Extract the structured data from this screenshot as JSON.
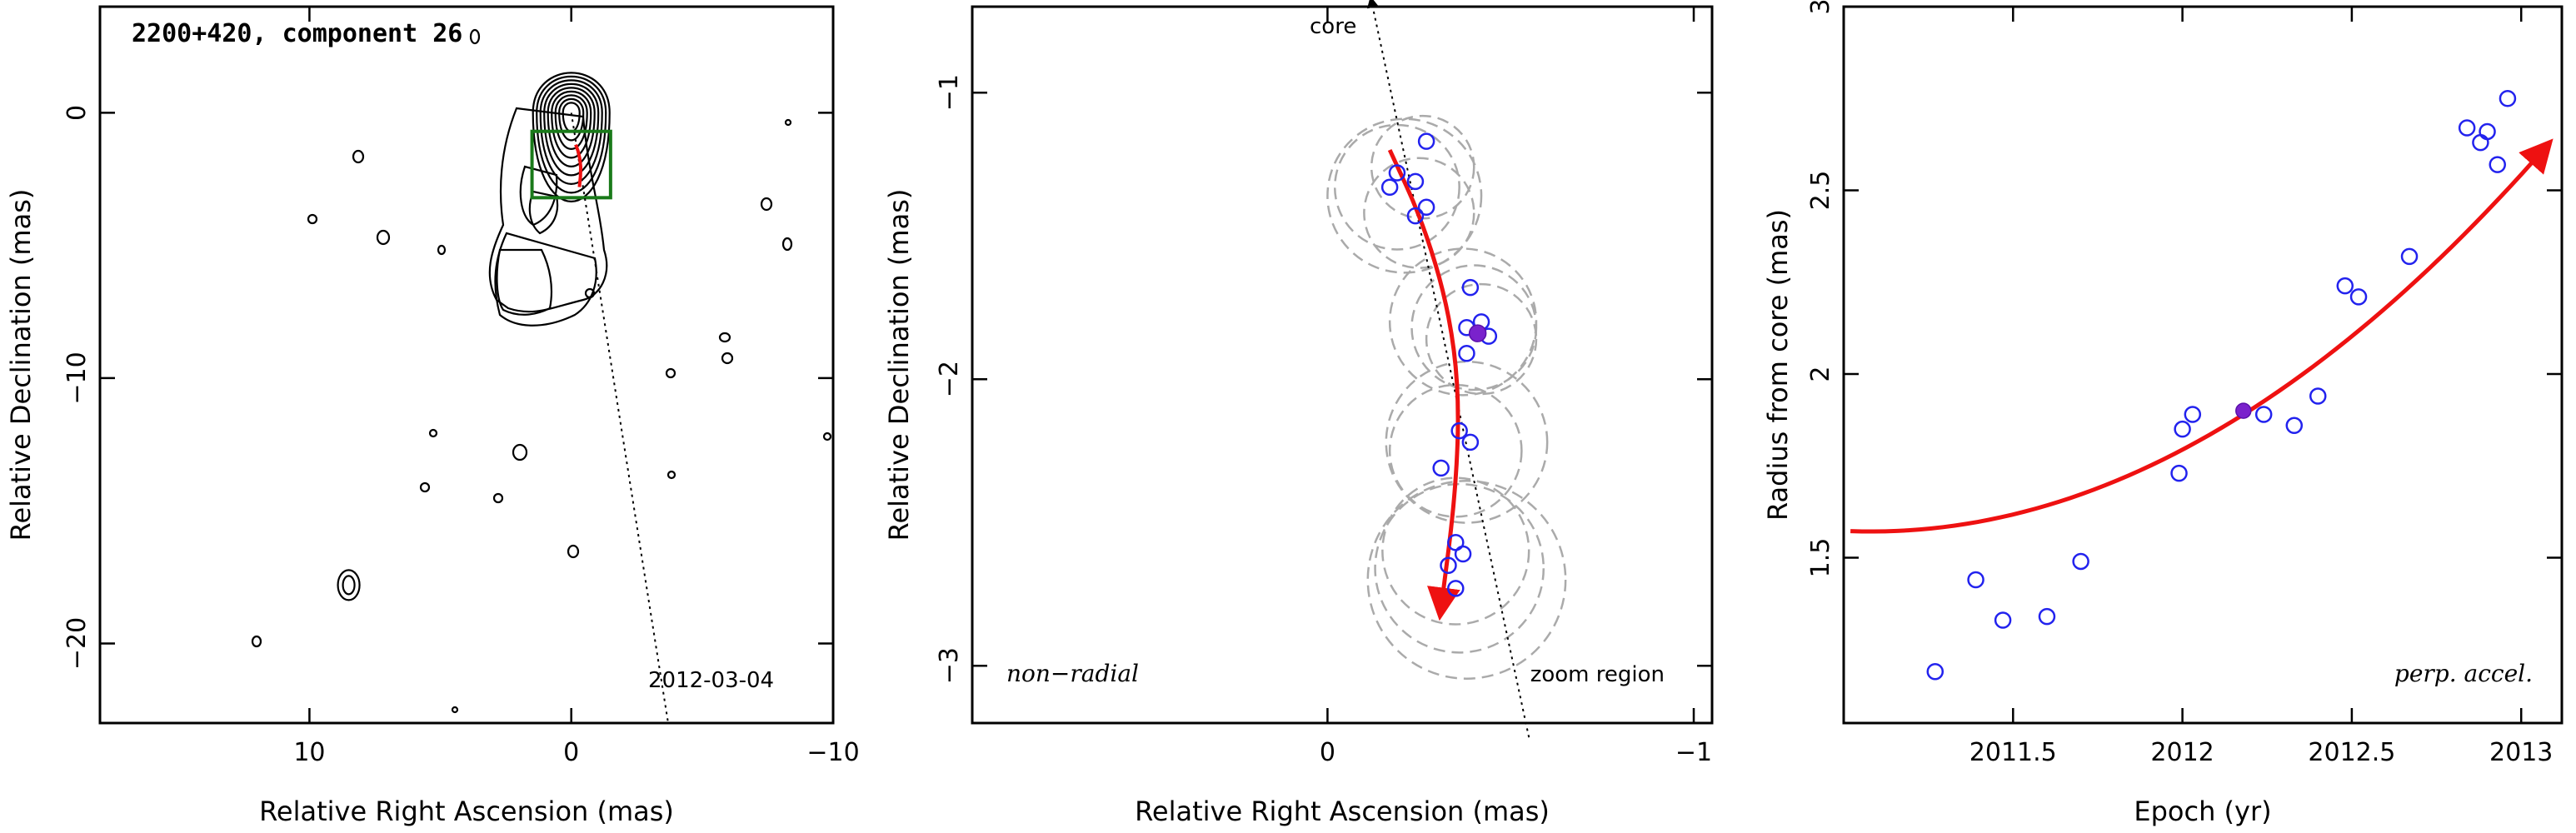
{
  "colors": {
    "track": "#ee1111",
    "points_open": "#2222ee",
    "point_filled": "#7a22cc",
    "box": "#1a7a1a",
    "circles": "#aaaaaa"
  },
  "chart_data": [
    {
      "type": "contour",
      "title": "2200+420, component 26",
      "xlabel": "Relative Right Ascension (mas)",
      "ylabel": "Relative Declination (mas)",
      "xlim": [
        18,
        -10
      ],
      "ylim": [
        -23,
        4
      ],
      "xticks": [
        10,
        0,
        -10
      ],
      "yticks": [
        0,
        -10,
        -20
      ],
      "xticklabels": [
        "10",
        "0",
        "−10"
      ],
      "yticklabels": [
        "0",
        "−10",
        "−20"
      ],
      "epoch_label": "2012-03-04",
      "zoom_box": {
        "x": [
          1.5,
          -1.5
        ],
        "y": [
          -0.7,
          -3.2
        ]
      },
      "direction_line": {
        "from": [
          0,
          0
        ],
        "to": [
          -3.7,
          -23
        ]
      }
    },
    {
      "type": "scatter",
      "xlabel": "Relative Right Ascension (mas)",
      "ylabel": "Relative Declination (mas)",
      "xlim": [
        0.97,
        -1.05
      ],
      "ylim": [
        -3.2,
        -0.7
      ],
      "xticks": [
        0,
        -1
      ],
      "yticks": [
        -1,
        -2,
        -3
      ],
      "xticklabels": [
        "0",
        "−1"
      ],
      "yticklabels": [
        "−1",
        "−2",
        "−3"
      ],
      "annotations": {
        "left": "non−radial",
        "right": "zoom region",
        "core": "core"
      },
      "points": [
        {
          "x": -0.27,
          "y": -1.17
        },
        {
          "x": -0.19,
          "y": -1.28
        },
        {
          "x": -0.24,
          "y": -1.31
        },
        {
          "x": -0.17,
          "y": -1.33
        },
        {
          "x": -0.27,
          "y": -1.4
        },
        {
          "x": -0.24,
          "y": -1.43
        },
        {
          "x": -0.39,
          "y": -1.68
        },
        {
          "x": -0.42,
          "y": -1.8
        },
        {
          "x": -0.38,
          "y": -1.82
        },
        {
          "x": -0.44,
          "y": -1.85
        },
        {
          "x": -0.38,
          "y": -1.91
        },
        {
          "x": -0.36,
          "y": -2.18
        },
        {
          "x": -0.39,
          "y": -2.22
        },
        {
          "x": -0.31,
          "y": -2.31
        },
        {
          "x": -0.35,
          "y": -2.57
        },
        {
          "x": -0.37,
          "y": -2.61
        },
        {
          "x": -0.33,
          "y": -2.65
        },
        {
          "x": -0.35,
          "y": -2.73
        }
      ],
      "highlight_point": {
        "x": -0.41,
        "y": -1.84
      },
      "circles": [
        {
          "x": -0.19,
          "y": -1.33,
          "r": 0.17
        },
        {
          "x": -0.26,
          "y": -1.26,
          "r": 0.14
        },
        {
          "x": -0.25,
          "y": -1.42,
          "r": 0.15
        },
        {
          "x": -0.21,
          "y": -1.36,
          "r": 0.21
        },
        {
          "x": -0.4,
          "y": -1.82,
          "r": 0.17
        },
        {
          "x": -0.42,
          "y": -1.86,
          "r": 0.15
        },
        {
          "x": -0.37,
          "y": -1.8,
          "r": 0.2
        },
        {
          "x": -0.35,
          "y": -2.25,
          "r": 0.18
        },
        {
          "x": -0.38,
          "y": -2.22,
          "r": 0.22
        },
        {
          "x": -0.35,
          "y": -2.6,
          "r": 0.2
        },
        {
          "x": -0.36,
          "y": -2.66,
          "r": 0.23
        },
        {
          "x": -0.38,
          "y": -2.7,
          "r": 0.27
        }
      ],
      "track": [
        {
          "x": -0.17,
          "y": -1.2
        },
        {
          "x": -0.26,
          "y": -1.45
        },
        {
          "x": -0.33,
          "y": -1.75
        },
        {
          "x": -0.36,
          "y": -2.05
        },
        {
          "x": -0.35,
          "y": -2.4
        },
        {
          "x": -0.31,
          "y": -2.8
        }
      ],
      "core_line": {
        "from": [
          -0.55,
          -3.25
        ],
        "to": [
          -0.12,
          -0.68
        ]
      }
    },
    {
      "type": "scatter",
      "xlabel": "Epoch (yr)",
      "ylabel": "Radius from core (mas)",
      "xlim": [
        2011.0,
        2013.12
      ],
      "ylim": [
        1.05,
        3.0
      ],
      "xticks": [
        2011.5,
        2012,
        2012.5,
        2013
      ],
      "yticks": [
        1.5,
        2,
        2.5,
        3
      ],
      "xticklabels": [
        "2011.5",
        "2012",
        "2012.5",
        "2013"
      ],
      "yticklabels": [
        "1.5",
        "2",
        "2.5",
        "3"
      ],
      "annotation": "perp. accel.",
      "points": [
        {
          "x": 2011.27,
          "y": 1.19
        },
        {
          "x": 2011.39,
          "y": 1.44
        },
        {
          "x": 2011.47,
          "y": 1.33
        },
        {
          "x": 2011.6,
          "y": 1.34
        },
        {
          "x": 2011.7,
          "y": 1.49
        },
        {
          "x": 2011.99,
          "y": 1.73
        },
        {
          "x": 2012.0,
          "y": 1.85
        },
        {
          "x": 2012.03,
          "y": 1.89
        },
        {
          "x": 2012.24,
          "y": 1.89
        },
        {
          "x": 2012.33,
          "y": 1.86
        },
        {
          "x": 2012.4,
          "y": 1.94
        },
        {
          "x": 2012.48,
          "y": 2.24
        },
        {
          "x": 2012.52,
          "y": 2.21
        },
        {
          "x": 2012.67,
          "y": 2.32
        },
        {
          "x": 2012.84,
          "y": 2.67
        },
        {
          "x": 2012.88,
          "y": 2.63
        },
        {
          "x": 2012.9,
          "y": 2.66
        },
        {
          "x": 2012.93,
          "y": 2.57
        },
        {
          "x": 2012.96,
          "y": 2.75
        }
      ],
      "highlight_point": {
        "x": 2012.18,
        "y": 1.9
      },
      "fit": {
        "x0": 2011.02,
        "x1": 2013.07,
        "a": 1.89,
        "b": 0.58,
        "c": 0.12,
        "center": 2012.18
      }
    }
  ]
}
